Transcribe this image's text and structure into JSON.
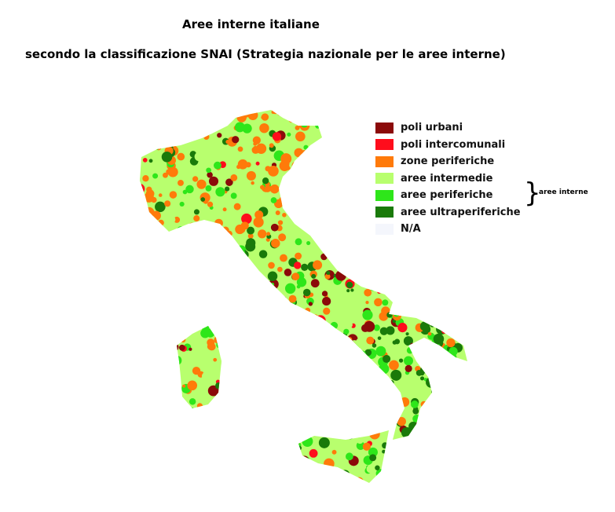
{
  "title": "Aree interne italiane",
  "subtitle": "secondo la classificazione SNAI (Strategia nazionale per le aree interne)",
  "legend": [
    {
      "label": "poli urbani",
      "color": "#8b0a0a"
    },
    {
      "label": "poli intercomunali",
      "color": "#ff0d1c"
    },
    {
      "label": "zone periferiche",
      "color": "#ff7a0a"
    },
    {
      "label": "aree intermedie",
      "color": "#b8ff6e"
    },
    {
      "label": "aree periferiche",
      "color": "#2ee61a"
    },
    {
      "label": "aree ultraperiferiche",
      "color": "#1a7a0a"
    },
    {
      "label": "N/A",
      "color": "#f4f6fc"
    }
  ],
  "group_label": "aree interne",
  "group_brace": "}"
}
